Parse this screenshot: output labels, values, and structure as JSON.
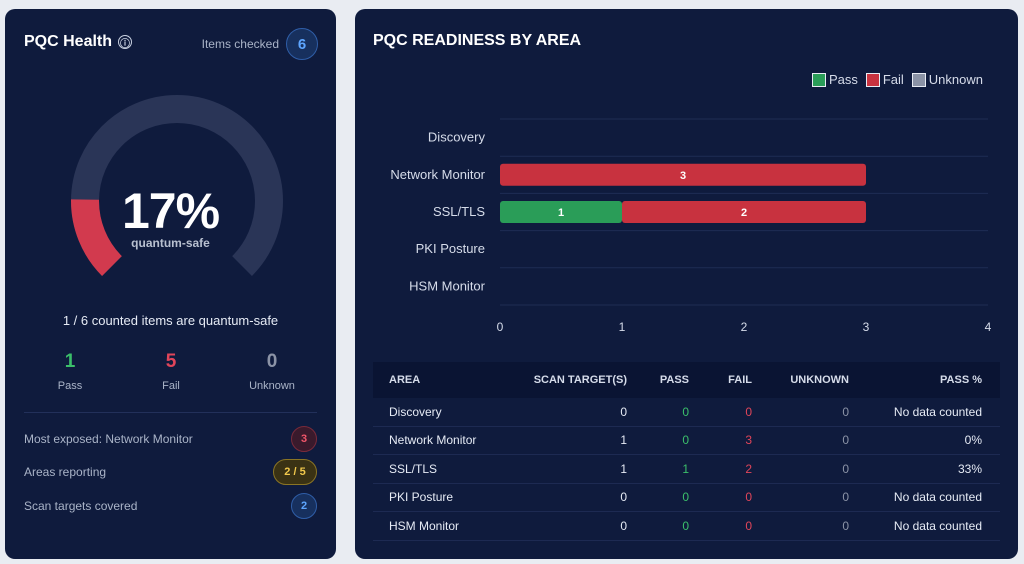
{
  "health": {
    "title": "PQC Health",
    "info_icon": "ⓘ",
    "items_checked_label": "Items checked",
    "items_checked": "6",
    "gauge_percent": "17%",
    "gauge_fraction": 0.17,
    "gauge_label": "quantum-safe",
    "counted_text": "1 / 6 counted items are quantum-safe",
    "stats": [
      {
        "value": "1",
        "label": "Pass"
      },
      {
        "value": "5",
        "label": "Fail"
      },
      {
        "value": "0",
        "label": "Unknown"
      }
    ],
    "rows": [
      {
        "label": "Most exposed: Network Monitor",
        "badge": "3"
      },
      {
        "label": "Areas reporting",
        "badge": "2 / 5"
      },
      {
        "label": "Scan targets covered",
        "badge": "2"
      }
    ],
    "colors": {
      "pass": "#3bbf6a",
      "fail": "#d23a4e",
      "track": "#2a3557"
    }
  },
  "readiness": {
    "title": "PQC READINESS BY AREA",
    "legend": [
      "Pass",
      "Fail",
      "Unknown"
    ],
    "table": {
      "headers": [
        "AREA",
        "SCAN TARGET(S)",
        "PASS",
        "FAIL",
        "UNKNOWN",
        "PASS %"
      ],
      "rows": [
        [
          "Discovery",
          "0",
          "0",
          "0",
          "0",
          "No data counted"
        ],
        [
          "Network Monitor",
          "1",
          "0",
          "3",
          "0",
          "0%"
        ],
        [
          "SSL/TLS",
          "1",
          "1",
          "2",
          "0",
          "33%"
        ],
        [
          "PKI Posture",
          "0",
          "0",
          "0",
          "0",
          "No data counted"
        ],
        [
          "HSM Monitor",
          "0",
          "0",
          "0",
          "0",
          "No data counted"
        ]
      ]
    }
  },
  "chart_data": {
    "type": "bar",
    "orientation": "horizontal",
    "stacked": true,
    "categories": [
      "Discovery",
      "Network Monitor",
      "SSL/TLS",
      "PKI Posture",
      "HSM Monitor"
    ],
    "series": [
      {
        "name": "Pass",
        "color": "#2a9d58",
        "values": [
          0,
          0,
          1,
          0,
          0
        ]
      },
      {
        "name": "Fail",
        "color": "#c8323f",
        "values": [
          0,
          3,
          2,
          0,
          0
        ]
      },
      {
        "name": "Unknown",
        "color": "#8b93a6",
        "values": [
          0,
          0,
          0,
          0,
          0
        ]
      }
    ],
    "xlim": [
      0,
      4
    ],
    "xticks": [
      "0",
      "1",
      "2",
      "3",
      "4"
    ],
    "legend_position": "top-right",
    "grid": true
  }
}
